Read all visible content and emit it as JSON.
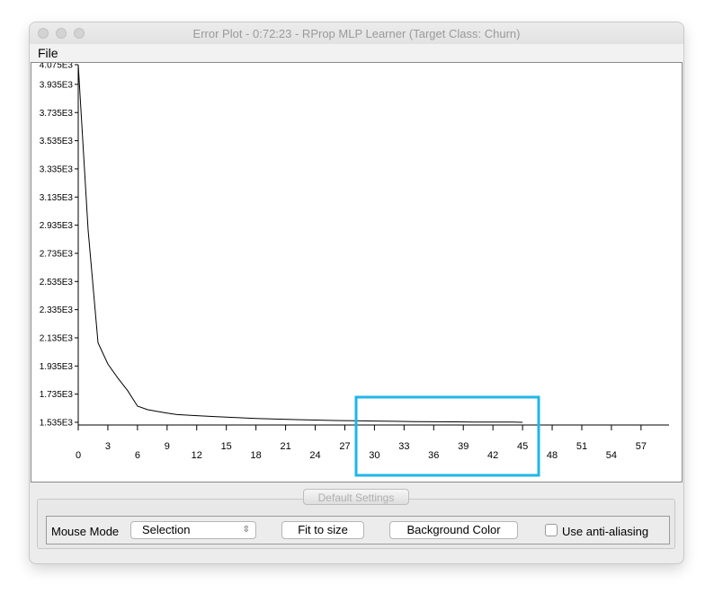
{
  "window": {
    "title": "Error Plot - 0:72:23 - RProp MLP Learner (Target Class: Churn)"
  },
  "menubar": {
    "file": "File"
  },
  "settings": {
    "tab_label": "Default Settings",
    "mouse_mode_label": "Mouse Mode",
    "mouse_mode_value": "Selection",
    "fit_button": "Fit to size",
    "background_button": "Background Color",
    "anti_alias_label": "Use anti-aliasing",
    "anti_alias_checked": false
  },
  "colors": {
    "highlight": "#1fb6ea",
    "line": "#000000"
  },
  "chart_data": {
    "type": "line",
    "title": "",
    "xlabel": "",
    "ylabel": "",
    "xlim": [
      0,
      60
    ],
    "ylim": [
      1520,
      4100
    ],
    "x_ticks": [
      0,
      3,
      6,
      9,
      12,
      15,
      18,
      21,
      24,
      27,
      30,
      33,
      36,
      39,
      42,
      45,
      48,
      51,
      54,
      57
    ],
    "y_ticks": [
      "4.075E3",
      "3.935E3",
      "3.735E3",
      "3.535E3",
      "3.335E3",
      "3.135E3",
      "2.935E3",
      "2.735E3",
      "2.535E3",
      "2.335E3",
      "2.135E3",
      "1.935E3",
      "1.735E3",
      "1.535E3"
    ],
    "y_tick_values": [
      4075,
      3935,
      3735,
      3535,
      3335,
      3135,
      2935,
      2735,
      2535,
      2335,
      2135,
      1935,
      1735,
      1535
    ],
    "series": [
      {
        "x": [
          0,
          1,
          2,
          3,
          4,
          5,
          6,
          7,
          8,
          9,
          10,
          12,
          14,
          16,
          18,
          20,
          22,
          24,
          26,
          28,
          30,
          32,
          34,
          36,
          38,
          40,
          42,
          44,
          45
        ],
        "values": [
          4075,
          2900,
          2100,
          1950,
          1850,
          1760,
          1650,
          1625,
          1612,
          1600,
          1590,
          1582,
          1575,
          1568,
          1562,
          1558,
          1554,
          1551,
          1548,
          1546,
          1544,
          1542,
          1540,
          1539,
          1538,
          1537,
          1536,
          1536,
          1535
        ]
      }
    ]
  }
}
